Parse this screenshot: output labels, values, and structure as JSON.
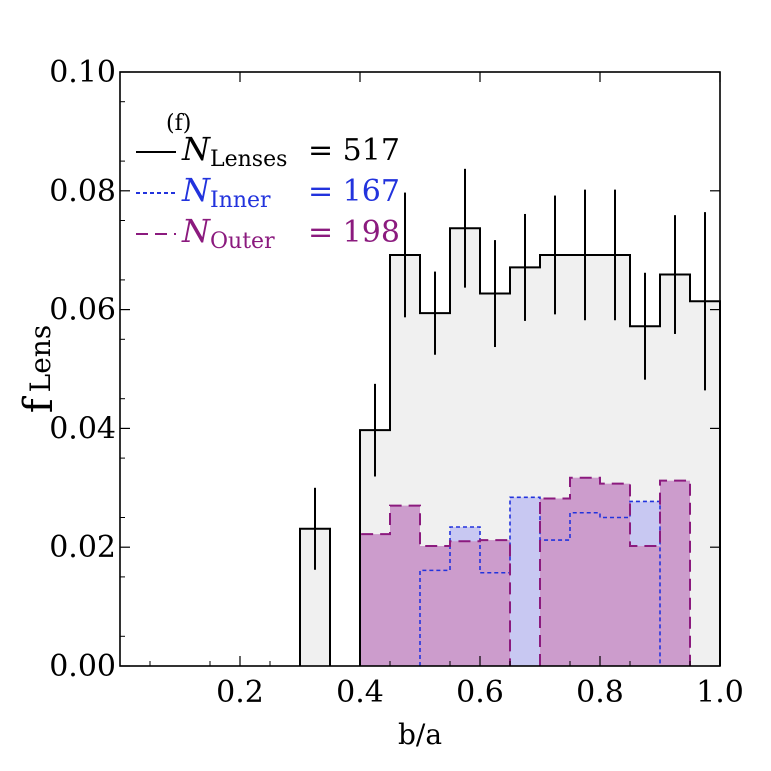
{
  "chart_data": {
    "type": "histogram",
    "panel_label": "(f)",
    "xlabel": "b/a",
    "ylabel": "f Lens",
    "ylabel_main": "f",
    "ylabel_sub": "Lens",
    "xlim": [
      0.0,
      1.0
    ],
    "ylim": [
      0.0,
      0.1
    ],
    "x_ticks": [
      {
        "value": 0.2,
        "label": "0.2"
      },
      {
        "value": 0.4,
        "label": "0.4"
      },
      {
        "value": 0.6,
        "label": "0.6"
      },
      {
        "value": 0.8,
        "label": "0.8"
      },
      {
        "value": 1.0,
        "label": "1.0"
      }
    ],
    "y_ticks": [
      {
        "value": 0.0,
        "label": "0.00"
      },
      {
        "value": 0.02,
        "label": "0.02"
      },
      {
        "value": 0.04,
        "label": "0.04"
      },
      {
        "value": 0.06,
        "label": "0.06"
      },
      {
        "value": 0.08,
        "label": "0.08"
      },
      {
        "value": 0.1,
        "label": "0.10"
      }
    ],
    "bin_edges": [
      0.0,
      0.05,
      0.1,
      0.15,
      0.2,
      0.25,
      0.3,
      0.35,
      0.4,
      0.45,
      0.5,
      0.55,
      0.6,
      0.65,
      0.7,
      0.75,
      0.8,
      0.85,
      0.9,
      0.95,
      1.0
    ],
    "series": [
      {
        "name": "Lenses",
        "legend_symbol": "N",
        "legend_subscript": "Lenses",
        "legend_value": "= 517",
        "color": "#000000",
        "fill": "#f0f0f0",
        "line_style": "solid",
        "values": [
          0,
          0,
          0,
          0,
          0,
          0,
          0.0231,
          0,
          0.0397,
          0.0692,
          0.0594,
          0.0737,
          0.0627,
          0.0671,
          0.0692,
          0.0692,
          0.0692,
          0.0572,
          0.0659,
          0.0614
        ],
        "errors": [
          0,
          0,
          0,
          0,
          0,
          0,
          0.0069,
          0,
          0.0078,
          0.0105,
          0.007,
          0.01,
          0.009,
          0.009,
          0.01,
          0.011,
          0.011,
          0.009,
          0.01,
          0.015
        ]
      },
      {
        "name": "Inner",
        "legend_symbol": "N",
        "legend_subscript": "Inner",
        "legend_value": "= 167",
        "color": "#2233dd",
        "fill": "#c8c8f2",
        "line_style": "dotted",
        "values": [
          0,
          0,
          0,
          0,
          0,
          0,
          0,
          0,
          0,
          0,
          0.0161,
          0.0234,
          0.0157,
          0.0284,
          0.0212,
          0.0258,
          0.025,
          0.0277,
          0,
          0
        ]
      },
      {
        "name": "Outer",
        "legend_symbol": "N",
        "legend_subscript": "Outer",
        "legend_value": "= 198",
        "color": "#8b1a7e",
        "fill": "#cc9ccc",
        "line_style": "dashed",
        "values": [
          0,
          0,
          0,
          0,
          0,
          0,
          0,
          0,
          0.0222,
          0.027,
          0.0202,
          0.021,
          0.0212,
          0,
          0.0282,
          0.0317,
          0.0307,
          0.0202,
          0.0312,
          0
        ]
      }
    ]
  }
}
